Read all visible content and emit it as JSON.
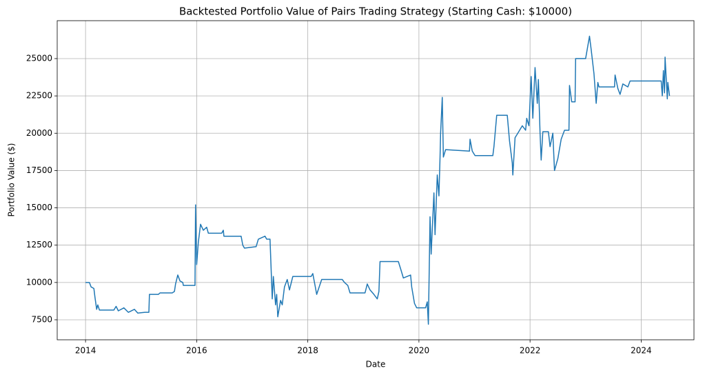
{
  "chart_data": {
    "type": "line",
    "title": "Backtested Portfolio Value of Pairs Trading Strategy (Starting Cash: $10000)",
    "x_label": "Date",
    "y_label": "Portfolio Value ($)",
    "color": "#1f77b4",
    "grid": true,
    "xlim": [
      2013.49,
      2024.95
    ],
    "xticks": [
      2014,
      2016,
      2018,
      2020,
      2022,
      2024
    ],
    "ylim": [
      6160,
      27540
    ],
    "yticks": [
      7500,
      10000,
      12500,
      15000,
      17500,
      20000,
      22500,
      25000
    ],
    "x": [
      2014.0,
      2014.07,
      2014.1,
      2014.15,
      2014.17,
      2014.2,
      2014.22,
      2014.25,
      2014.51,
      2014.55,
      2014.59,
      2014.69,
      2014.77,
      2014.88,
      2014.94,
      2015.07,
      2015.14,
      2015.15,
      2015.31,
      2015.34,
      2015.56,
      2015.6,
      2015.62,
      2015.66,
      2015.7,
      2015.75,
      2015.76,
      2015.97,
      2015.98,
      2016.0,
      2016.03,
      2016.07,
      2016.12,
      2016.18,
      2016.21,
      2016.45,
      2016.48,
      2016.49,
      2016.8,
      2016.83,
      2016.86,
      2017.07,
      2017.11,
      2017.23,
      2017.26,
      2017.32,
      2017.36,
      2017.38,
      2017.42,
      2017.44,
      2017.46,
      2017.51,
      2017.54,
      2017.58,
      2017.63,
      2017.67,
      2017.73,
      2018.06,
      2018.09,
      2018.13,
      2018.16,
      2018.25,
      2018.62,
      2018.66,
      2018.72,
      2018.76,
      2019.03,
      2019.07,
      2019.12,
      2019.19,
      2019.25,
      2019.28,
      2019.3,
      2019.63,
      2019.68,
      2019.72,
      2019.85,
      2019.87,
      2019.92,
      2019.96,
      2020.12,
      2020.15,
      2020.17,
      2020.2,
      2020.22,
      2020.27,
      2020.29,
      2020.33,
      2020.36,
      2020.38,
      2020.39,
      2020.42,
      2020.44,
      2020.48,
      2020.91,
      2020.92,
      2020.96,
      2021.01,
      2021.33,
      2021.35,
      2021.4,
      2021.59,
      2021.63,
      2021.68,
      2021.69,
      2021.73,
      2021.78,
      2021.86,
      2021.92,
      2021.94,
      2021.98,
      2022.02,
      2022.05,
      2022.09,
      2022.13,
      2022.15,
      2022.18,
      2022.2,
      2022.23,
      2022.33,
      2022.36,
      2022.41,
      2022.44,
      2022.5,
      2022.56,
      2022.62,
      2022.7,
      2022.71,
      2022.75,
      2022.81,
      2022.82,
      2023.0,
      2023.07,
      2023.1,
      2023.15,
      2023.19,
      2023.22,
      2023.24,
      2023.52,
      2023.53,
      2023.58,
      2023.62,
      2023.67,
      2023.76,
      2023.8,
      2024.36,
      2024.38,
      2024.4,
      2024.42,
      2024.43,
      2024.46,
      2024.47,
      2024.48,
      2024.51
    ],
    "values": [
      10000,
      10000,
      9700,
      9600,
      9000,
      8200,
      8500,
      8150,
      8150,
      8400,
      8100,
      8300,
      8000,
      8200,
      7950,
      8000,
      8000,
      9200,
      9200,
      9300,
      9300,
      9400,
      9900,
      10500,
      10100,
      10000,
      9800,
      9800,
      15200,
      11200,
      12700,
      13900,
      13500,
      13700,
      13300,
      13300,
      13500,
      13100,
      13100,
      12500,
      12300,
      12400,
      12900,
      13100,
      12900,
      12900,
      8900,
      10400,
      8500,
      9200,
      7700,
      8800,
      8500,
      9700,
      10200,
      9500,
      10400,
      10400,
      10600,
      9800,
      9200,
      10200,
      10200,
      10000,
      9800,
      9300,
      9300,
      9900,
      9500,
      9200,
      8900,
      9400,
      11400,
      11400,
      10800,
      10300,
      10500,
      9700,
      8600,
      8300,
      8300,
      8700,
      7200,
      14400,
      11900,
      16000,
      13200,
      17200,
      15800,
      18400,
      20000,
      22400,
      18400,
      18900,
      18800,
      19600,
      18800,
      18500,
      18500,
      19100,
      21200,
      21200,
      19500,
      18000,
      17200,
      19700,
      20000,
      20500,
      20200,
      21000,
      20500,
      23800,
      21000,
      24400,
      22000,
      23600,
      20000,
      18200,
      20100,
      20100,
      19100,
      20000,
      17500,
      18300,
      19600,
      20200,
      20200,
      23200,
      22100,
      22100,
      25000,
      25000,
      26500,
      25600,
      24000,
      22000,
      23400,
      23100,
      23100,
      23900,
      23000,
      22600,
      23300,
      23100,
      23500,
      23500,
      22500,
      24200,
      22700,
      25100,
      23000,
      22300,
      23400,
      22500
    ]
  }
}
